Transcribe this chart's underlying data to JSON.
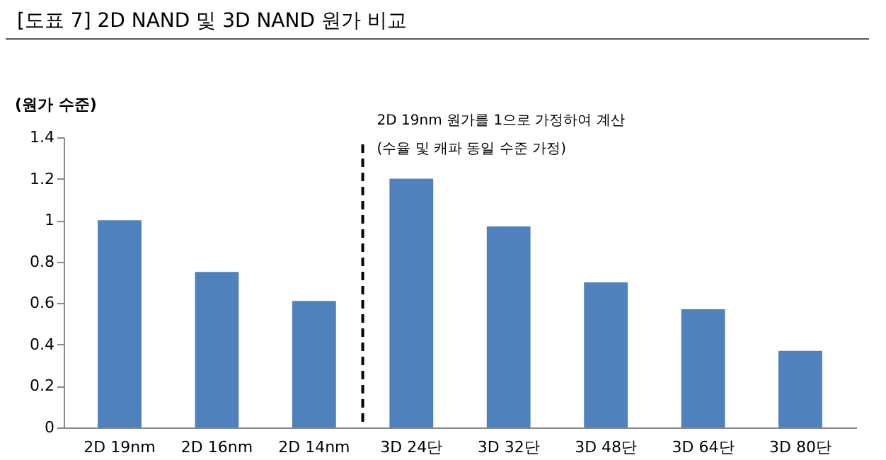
{
  "chart_data": {
    "type": "bar",
    "title": "[도표 7] 2D NAND 및 3D NAND 원가 비교",
    "ylabel": "(원가 수준)",
    "annotations": [
      "2D 19nm 원가를 1으로 가정하여 계산",
      "(수율 및 캐파 동일 수준 가정)"
    ],
    "categories": [
      "2D 19nm",
      "2D 16nm",
      "2D 14nm",
      "3D 24단",
      "3D 32단",
      "3D 48단",
      "3D 64단",
      "3D 80단"
    ],
    "values": [
      1.0,
      0.75,
      0.61,
      1.2,
      0.97,
      0.7,
      0.57,
      0.37
    ],
    "color": "#4f81bd",
    "ylim": [
      0,
      1.4
    ],
    "yticks": [
      0,
      0.2,
      0.4,
      0.6,
      0.8,
      1,
      1.2,
      1.4
    ]
  }
}
